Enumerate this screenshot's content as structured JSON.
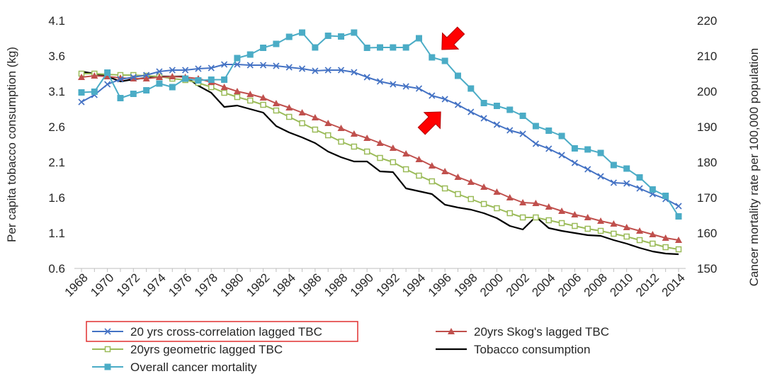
{
  "chart_data": {
    "type": "line",
    "title": "",
    "x": [
      "1968",
      "1969",
      "1970",
      "1971",
      "1972",
      "1973",
      "1974",
      "1975",
      "1976",
      "1977",
      "1978",
      "1979",
      "1980",
      "1981",
      "1982",
      "1983",
      "1984",
      "1985",
      "1986",
      "1987",
      "1988",
      "1989",
      "1990",
      "1991",
      "1992",
      "1993",
      "1994",
      "1995",
      "1996",
      "1997",
      "1998",
      "1999",
      "2000",
      "2001",
      "2002",
      "2003",
      "2004",
      "2005",
      "2006",
      "2007",
      "2008",
      "2009",
      "2010",
      "2011",
      "2012",
      "2013",
      "2014"
    ],
    "x_tick_labels": [
      "1968",
      "1970",
      "1972",
      "1974",
      "1976",
      "1978",
      "1980",
      "1982",
      "1984",
      "1986",
      "1988",
      "1990",
      "1992",
      "1994",
      "1996",
      "1998",
      "2000",
      "2002",
      "2004",
      "2006",
      "2008",
      "2010",
      "2012",
      "2014"
    ],
    "ylabel_left": "Per capita tobacco consumption (kg)",
    "ylabel_right": "Cancer  mortality rate per 100,000 population",
    "ylim_left": [
      0.6,
      4.1
    ],
    "ylim_right": [
      150,
      220
    ],
    "yticks_left": [
      "0.6",
      "1.1",
      "1.6",
      "2.1",
      "2.6",
      "3.1",
      "3.6",
      "4.1"
    ],
    "yticks_right": [
      "150",
      "160",
      "170",
      "180",
      "190",
      "200",
      "210",
      "220"
    ],
    "gridlines": false,
    "series": [
      {
        "name": "20 yrs cross-correlation lagged TBC",
        "axis": "left",
        "color": "#4472c4",
        "marker": "x",
        "highlighted": true,
        "values": [
          2.95,
          3.05,
          3.2,
          3.27,
          3.3,
          3.33,
          3.38,
          3.4,
          3.4,
          3.42,
          3.43,
          3.48,
          3.48,
          3.47,
          3.47,
          3.46,
          3.44,
          3.42,
          3.39,
          3.4,
          3.4,
          3.37,
          3.3,
          3.24,
          3.2,
          3.17,
          3.14,
          3.04,
          2.99,
          2.91,
          2.81,
          2.72,
          2.63,
          2.55,
          2.5,
          2.36,
          2.29,
          2.2,
          2.09,
          2.0,
          1.9,
          1.81,
          1.8,
          1.73,
          1.65,
          1.58,
          1.48
        ]
      },
      {
        "name": "20yrs Skog's lagged TBC",
        "axis": "left",
        "color": "#c0504d",
        "marker": "triangle",
        "values": [
          3.3,
          3.32,
          3.31,
          3.29,
          3.28,
          3.28,
          3.3,
          3.31,
          3.3,
          3.28,
          3.23,
          3.16,
          3.1,
          3.06,
          3.01,
          2.93,
          2.87,
          2.8,
          2.73,
          2.65,
          2.58,
          2.5,
          2.44,
          2.37,
          2.3,
          2.22,
          2.14,
          2.05,
          1.97,
          1.89,
          1.82,
          1.75,
          1.68,
          1.6,
          1.53,
          1.52,
          1.47,
          1.41,
          1.36,
          1.32,
          1.27,
          1.23,
          1.18,
          1.13,
          1.08,
          1.03,
          1.0
        ]
      },
      {
        "name": "20yrs geometric lagged TBC",
        "axis": "left",
        "color": "#9bbb59",
        "marker": "square-open",
        "values": [
          3.35,
          3.35,
          3.34,
          3.33,
          3.33,
          3.32,
          3.31,
          3.28,
          3.26,
          3.22,
          3.16,
          3.08,
          3.02,
          2.97,
          2.91,
          2.83,
          2.74,
          2.65,
          2.56,
          2.48,
          2.39,
          2.32,
          2.25,
          2.16,
          2.1,
          2.0,
          1.91,
          1.83,
          1.73,
          1.65,
          1.58,
          1.51,
          1.45,
          1.38,
          1.32,
          1.32,
          1.28,
          1.24,
          1.2,
          1.16,
          1.13,
          1.09,
          1.05,
          1.0,
          0.95,
          0.9,
          0.87
        ]
      },
      {
        "name": "Tobacco consumption",
        "axis": "left",
        "color": "#000000",
        "marker": "none",
        "values": [
          3.38,
          3.35,
          3.31,
          3.24,
          3.27,
          3.29,
          3.31,
          3.31,
          3.31,
          3.18,
          3.08,
          2.88,
          2.9,
          2.85,
          2.8,
          2.61,
          2.52,
          2.45,
          2.37,
          2.25,
          2.17,
          2.11,
          2.11,
          1.97,
          1.96,
          1.73,
          1.69,
          1.65,
          1.5,
          1.46,
          1.43,
          1.38,
          1.31,
          1.2,
          1.15,
          1.33,
          1.17,
          1.13,
          1.1,
          1.07,
          1.06,
          1.0,
          0.95,
          0.89,
          0.84,
          0.81,
          0.8
        ]
      },
      {
        "name": "Overall cancer mortality",
        "axis": "right",
        "color": "#4bacc6",
        "marker": "square",
        "values": [
          199.7,
          199.9,
          205.3,
          198.1,
          199.3,
          200.3,
          202.2,
          201.2,
          203.6,
          203.1,
          203.3,
          203.3,
          209.4,
          210.4,
          212.3,
          213.4,
          215.4,
          216.6,
          212.4,
          215.7,
          215.5,
          216.6,
          212.3,
          212.4,
          212.4,
          212.4,
          215.0,
          209.6,
          208.6,
          204.4,
          200.8,
          196.7,
          195.9,
          194.8,
          193.1,
          190.2,
          188.9,
          187.4,
          183.9,
          183.6,
          182.6,
          179.2,
          178.2,
          175.7,
          172.3,
          170.5,
          164.7
        ]
      }
    ],
    "annotations": [
      {
        "type": "arrow",
        "color": "#ff0000",
        "points_at": {
          "series": "Overall cancer mortality",
          "x": "1995"
        }
      },
      {
        "type": "arrow",
        "color": "#ff0000",
        "points_at": {
          "series": "20 yrs cross-correlation lagged TBC",
          "x": "1996"
        }
      }
    ],
    "legend": {
      "position": "bottom",
      "entries": [
        "20 yrs cross-correlation lagged TBC",
        "20yrs Skog's lagged TBC",
        "20yrs geometric lagged TBC",
        "Tobacco consumption",
        "Overall cancer mortality"
      ],
      "highlighted_entry": "20 yrs cross-correlation lagged TBC",
      "highlight_color": "#e03030"
    }
  }
}
